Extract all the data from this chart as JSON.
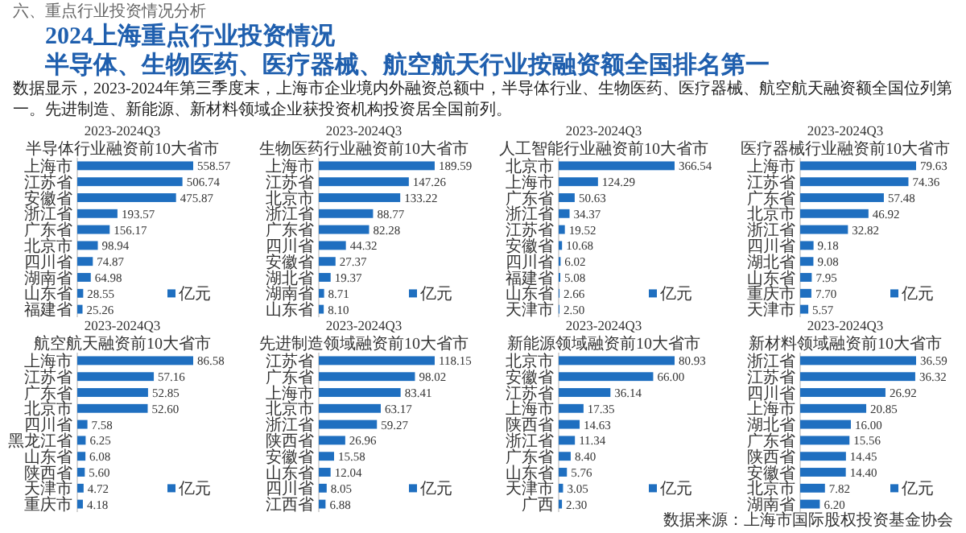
{
  "chart_data": [
    {
      "type": "other",
      "title": "2024上海重点行业投资情况",
      "subtitle": "半导体、生物医药、医疗器械、航空航天行业按融资额全国排名第一",
      "annotations": [
        "六、重点行业投资情况分析",
        "数据显示，2023-2024年第三季度末，上海市企业境内外融资总额中，半导体行业、生物医药、医疗器械、航空航天融资额全国位列第一。先进制造、新能源、新材料领域企业获投资机构投资居全国前列。",
        "数据来源：上海市国际股权投资基金协会"
      ]
    },
    {
      "type": "bar",
      "orientation": "horizontal",
      "title": "2023-2024Q3半导体行业融资前10大省市",
      "categories": [
        "上海市",
        "江苏省",
        "安徽省",
        "浙江省",
        "广东省",
        "北京市",
        "四川省",
        "湖南省",
        "山东省",
        "福建省"
      ],
      "series": [
        {
          "name": "亿元",
          "color": "#1f6fc0",
          "values": [
            558.57,
            506.74,
            475.87,
            193.57,
            156.17,
            98.94,
            74.87,
            64.98,
            28.55,
            25.26
          ],
          "value_labels": [
            "558.57",
            "506.74",
            "475.87",
            "193.57",
            "156.17",
            "98.94",
            "74.87",
            "64.98",
            "28.55",
            "25.26"
          ]
        }
      ],
      "legend": "bottom right"
    },
    {
      "type": "bar",
      "orientation": "horizontal",
      "title": "2023-2024Q3生物医药行业融资前10大省市",
      "categories": [
        "上海市",
        "江苏省",
        "北京市",
        "浙江省",
        "广东省",
        "四川省",
        "安徽省",
        "湖北省",
        "湖南省",
        "山东省"
      ],
      "series": [
        {
          "name": "亿元",
          "color": "#1f6fc0",
          "values": [
            189.59,
            147.26,
            133.22,
            88.77,
            82.28,
            44.32,
            27.37,
            19.37,
            8.71,
            8.1
          ],
          "value_labels": [
            "189.59",
            "147.26",
            "133.22",
            "88.77",
            "82.28",
            "44.32",
            "27.37",
            "19.37",
            "8.71",
            "8.10"
          ]
        }
      ],
      "legend": "bottom right"
    },
    {
      "type": "bar",
      "orientation": "horizontal",
      "title": "2023-2024Q3人工智能行业融资前10大省市",
      "categories": [
        "北京市",
        "上海市",
        "广东省",
        "浙江省",
        "江苏省",
        "安徽省",
        "四川省",
        "福建省",
        "山东省",
        "天津市"
      ],
      "series": [
        {
          "name": "亿元",
          "color": "#1f6fc0",
          "values": [
            366.54,
            124.29,
            50.63,
            34.37,
            19.52,
            10.68,
            6.02,
            5.08,
            2.66,
            2.5
          ],
          "value_labels": [
            "366.54",
            "124.29",
            "50.63",
            "34.37",
            "19.52",
            "10.68",
            "6.02",
            "5.08",
            "2.66",
            "2.50"
          ]
        }
      ],
      "legend": "bottom right"
    },
    {
      "type": "bar",
      "orientation": "horizontal",
      "title": "2023-2024Q3医疗器械行业融资前10大省市",
      "categories": [
        "上海市",
        "江苏省",
        "广东省",
        "北京市",
        "浙江省",
        "四川省",
        "湖北省",
        "山东省",
        "重庆市",
        "天津市"
      ],
      "series": [
        {
          "name": "亿元",
          "color": "#1f6fc0",
          "values": [
            79.63,
            74.36,
            57.48,
            46.92,
            32.82,
            9.18,
            9.08,
            7.95,
            7.7,
            5.57
          ],
          "value_labels": [
            "79.63",
            "74.36",
            "57.48",
            "46.92",
            "32.82",
            "9.18",
            "9.08",
            "7.95",
            "7.70",
            "5.57"
          ]
        }
      ],
      "legend": "bottom right"
    },
    {
      "type": "bar",
      "orientation": "horizontal",
      "title": "2023-2024Q3航空航天融资前10大省市",
      "categories": [
        "上海市",
        "江苏省",
        "广东省",
        "北京市",
        "四川省",
        "黑龙江省",
        "山东省",
        "陕西省",
        "天津市",
        "重庆市"
      ],
      "series": [
        {
          "name": "亿元",
          "color": "#1f6fc0",
          "values": [
            86.58,
            57.16,
            52.85,
            52.6,
            7.58,
            6.25,
            6.08,
            5.6,
            4.72,
            4.18
          ],
          "value_labels": [
            "86.58",
            "57.16",
            "52.85",
            "52.60",
            "7.58",
            "6.25",
            "6.08",
            "5.60",
            "4.72",
            "4.18"
          ]
        }
      ],
      "legend": "bottom right"
    },
    {
      "type": "bar",
      "orientation": "horizontal",
      "title": "2023-2024Q3先进制造领域融资前10大省市",
      "categories": [
        "江苏省",
        "广东省",
        "上海市",
        "北京市",
        "浙江省",
        "陕西省",
        "安徽省",
        "山东省",
        "四川省",
        "江西省"
      ],
      "series": [
        {
          "name": "亿元",
          "color": "#1f6fc0",
          "values": [
            118.15,
            98.02,
            83.41,
            63.17,
            59.27,
            26.96,
            15.58,
            12.04,
            8.05,
            6.88
          ],
          "value_labels": [
            "118.15",
            "98.02",
            "83.41",
            "63.17",
            "59.27",
            "26.96",
            "15.58",
            "12.04",
            "8.05",
            "6.88"
          ]
        }
      ],
      "legend": "bottom right"
    },
    {
      "type": "bar",
      "orientation": "horizontal",
      "title": "2023-2024Q3新能源领域融资前10大省市",
      "categories": [
        "北京市",
        "安徽省",
        "江苏省",
        "上海市",
        "陕西省",
        "浙江省",
        "广东省",
        "山东省",
        "天津市",
        "广西"
      ],
      "series": [
        {
          "name": "亿元",
          "color": "#1f6fc0",
          "values": [
            80.93,
            66.0,
            36.14,
            17.35,
            14.63,
            11.34,
            8.4,
            5.76,
            3.05,
            2.3
          ],
          "value_labels": [
            "80.93",
            "66.00",
            "36.14",
            "17.35",
            "14.63",
            "11.34",
            "8.40",
            "5.76",
            "3.05",
            "2.30"
          ]
        }
      ],
      "legend": "bottom right"
    },
    {
      "type": "bar",
      "orientation": "horizontal",
      "title": "2023-2024Q3新材料领域融资前10大省市",
      "categories": [
        "浙江省",
        "江苏省",
        "四川省",
        "上海市",
        "湖北省",
        "广东省",
        "陕西省",
        "安徽省",
        "北京市",
        "湖南省"
      ],
      "series": [
        {
          "name": "亿元",
          "color": "#1f6fc0",
          "values": [
            36.59,
            36.32,
            26.92,
            20.85,
            16.0,
            15.56,
            14.45,
            14.4,
            7.82,
            6.2
          ],
          "value_labels": [
            "36.59",
            "36.32",
            "26.92",
            "20.85",
            "16.00",
            "15.56",
            "14.45",
            "14.40",
            "7.82",
            "6.20"
          ]
        }
      ],
      "legend": "bottom right"
    }
  ]
}
